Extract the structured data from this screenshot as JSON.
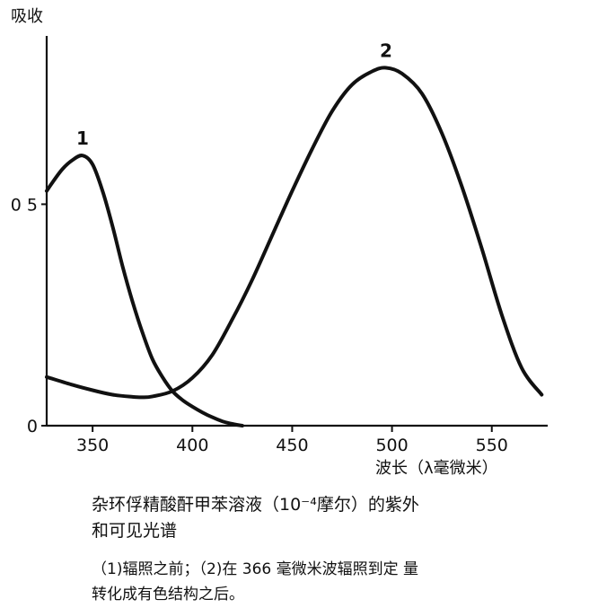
{
  "chart_data": {
    "type": "line",
    "ylabel": "吸收",
    "xlabel": "波长（λ毫微米）",
    "xlim": [
      327,
      578
    ],
    "ylim": [
      0,
      0.88
    ],
    "x_ticks": [
      350,
      400,
      450,
      500,
      550
    ],
    "x_tick_labels": [
      "350",
      "400",
      "450",
      "500",
      "550"
    ],
    "y_ticks": [
      0,
      0.5
    ],
    "y_tick_labels": [
      "0",
      "0 5"
    ],
    "grid": false,
    "series": [
      {
        "name": "1",
        "x": [
          327,
          330,
          335,
          340,
          345,
          350,
          355,
          360,
          365,
          370,
          375,
          380,
          385,
          390,
          395,
          400,
          405,
          410,
          415,
          420,
          425
        ],
        "y": [
          0.53,
          0.55,
          0.58,
          0.6,
          0.61,
          0.59,
          0.53,
          0.45,
          0.36,
          0.28,
          0.21,
          0.15,
          0.11,
          0.078,
          0.058,
          0.043,
          0.03,
          0.019,
          0.01,
          0.004,
          0.0
        ]
      },
      {
        "name": "2",
        "x": [
          327,
          340,
          350,
          360,
          370,
          375,
          380,
          390,
          400,
          410,
          420,
          430,
          440,
          450,
          460,
          470,
          480,
          490,
          497,
          505,
          515,
          525,
          535,
          545,
          555,
          565,
          575
        ],
        "y": [
          0.11,
          0.092,
          0.08,
          0.07,
          0.065,
          0.064,
          0.066,
          0.078,
          0.108,
          0.16,
          0.24,
          0.33,
          0.43,
          0.53,
          0.625,
          0.71,
          0.77,
          0.8,
          0.808,
          0.795,
          0.75,
          0.66,
          0.54,
          0.4,
          0.25,
          0.13,
          0.07
        ]
      }
    ]
  },
  "caption": {
    "line1": "杂环俘精酸酐甲苯溶液（10⁻⁴摩尔）的紫外",
    "line2": "和可见光谱",
    "note_line1": "（1)辐照之前；（2)在 366 毫微米波辐照到定 量",
    "note_line2": "转化成有色结构之后。"
  }
}
